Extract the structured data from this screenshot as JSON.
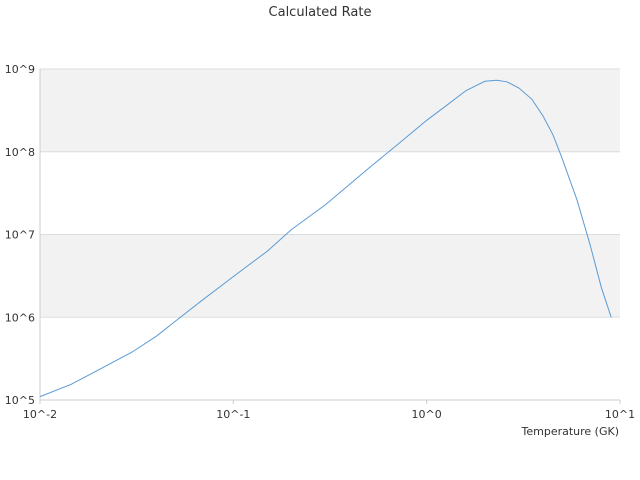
{
  "chart_data": {
    "type": "line",
    "title": "Calculated Rate",
    "xlabel": "Temperature (GK)",
    "ylabel": "",
    "xscale": "log",
    "yscale": "log",
    "xlim": [
      0.01,
      10
    ],
    "ylim": [
      100000,
      1000000000
    ],
    "grid": "horizontal bands",
    "legend": "none",
    "x_ticks": [
      {
        "value": 0.01,
        "label": "10^-2"
      },
      {
        "value": 0.1,
        "label": "10^-1"
      },
      {
        "value": 1,
        "label": "10^0"
      },
      {
        "value": 10,
        "label": "10^1"
      }
    ],
    "y_ticks": [
      {
        "value": 100000,
        "label": "10^5"
      },
      {
        "value": 1000000,
        "label": "10^6"
      },
      {
        "value": 10000000,
        "label": "10^7"
      },
      {
        "value": 100000000,
        "label": "10^8"
      },
      {
        "value": 1000000000,
        "label": "10^9"
      }
    ],
    "series": [
      {
        "color": "#5b9bd5",
        "x": [
          0.01,
          0.0145,
          0.02,
          0.03,
          0.04,
          0.05,
          0.07,
          0.1,
          0.15,
          0.2,
          0.3,
          0.5,
          0.7,
          1.0,
          1.3,
          1.6,
          2.0,
          2.3,
          2.6,
          3.0,
          3.5,
          4.0,
          4.5,
          5.0,
          6.0,
          7.0,
          8.0,
          9.0
        ],
        "y": [
          110000,
          155000,
          230000,
          380000,
          590000,
          890000,
          1650000,
          3100000,
          6300000,
          11500000,
          23000000,
          63000000,
          120000000,
          240000000,
          380000000,
          550000000,
          710000000,
          730000000,
          700000000,
          590000000,
          430000000,
          270000000,
          160000000,
          85000000,
          26000000,
          7500000,
          2300000,
          1000000
        ]
      }
    ]
  }
}
